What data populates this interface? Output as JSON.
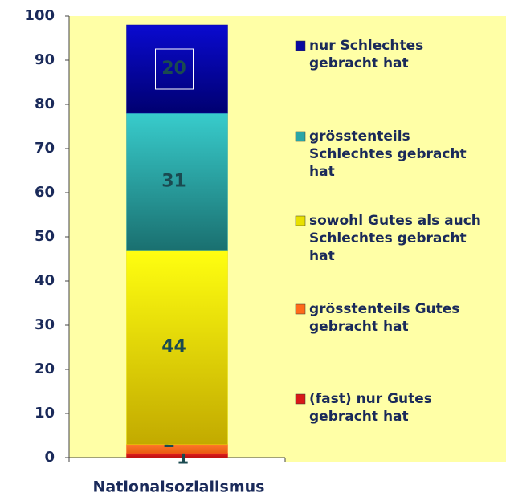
{
  "chart_data": {
    "type": "stacked_bar",
    "categories": [
      "Nationalsozialismus"
    ],
    "series": [
      {
        "name": "(fast) nur Gutes gebracht hat",
        "color": "#d81818",
        "values": [
          1
        ]
      },
      {
        "name": "grösstenteils Gutes gebracht hat",
        "color": "#ff6a1a",
        "values": [
          2
        ]
      },
      {
        "name": "sowohl Gutes als auch Schlechtes gebracht hat",
        "color": "#e8e000",
        "values": [
          44
        ]
      },
      {
        "name": "grösstenteils Schlechtes gebracht hat",
        "color": "#2aa6a6",
        "values": [
          31
        ]
      },
      {
        "name": "nur Schlechtes gebracht hat",
        "color": "#0a0aa0",
        "values": [
          20
        ]
      }
    ],
    "ylim": [
      0,
      100
    ],
    "yticks": [
      0,
      10,
      20,
      30,
      40,
      50,
      60,
      70,
      80,
      90,
      100
    ],
    "legend": "right"
  }
}
